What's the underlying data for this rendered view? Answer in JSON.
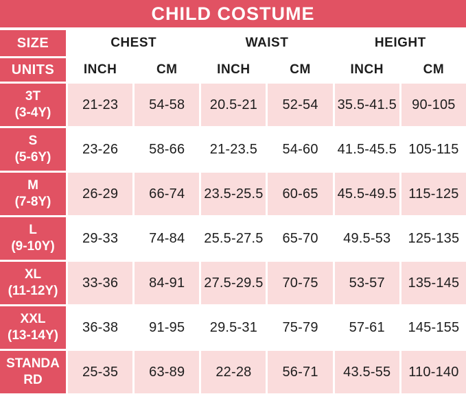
{
  "title": "CHILD COSTUME",
  "colors": {
    "accent": "#E15263",
    "row_pink": "#FADCDC",
    "text": "#1D1D1D",
    "background": "#FFFFFF"
  },
  "header": {
    "size_label": "SIZE",
    "units_label": "UNITS",
    "groups": [
      "CHEST",
      "WAIST",
      "HEIGHT"
    ],
    "units": [
      "INCH",
      "CM",
      "INCH",
      "CM",
      "INCH",
      "CM"
    ]
  },
  "chart_data": {
    "type": "table",
    "title": "CHILD COSTUME",
    "columns": [
      "SIZE",
      "CHEST INCH",
      "CHEST CM",
      "WAIST INCH",
      "WAIST CM",
      "HEIGHT INCH",
      "HEIGHT CM"
    ],
    "rows": [
      {
        "size_lines": [
          "3T",
          "(3-4Y)"
        ],
        "values": [
          "21-23",
          "54-58",
          "20.5-21",
          "52-54",
          "35.5-41.5",
          "90-105"
        ]
      },
      {
        "size_lines": [
          "S",
          "(5-6Y)"
        ],
        "values": [
          "23-26",
          "58-66",
          "21-23.5",
          "54-60",
          "41.5-45.5",
          "105-115"
        ]
      },
      {
        "size_lines": [
          "M",
          "(7-8Y)"
        ],
        "values": [
          "26-29",
          "66-74",
          "23.5-25.5",
          "60-65",
          "45.5-49.5",
          "115-125"
        ]
      },
      {
        "size_lines": [
          "L",
          "(9-10Y)"
        ],
        "values": [
          "29-33",
          "74-84",
          "25.5-27.5",
          "65-70",
          "49.5-53",
          "125-135"
        ]
      },
      {
        "size_lines": [
          "XL",
          "(11-12Y)"
        ],
        "values": [
          "33-36",
          "84-91",
          "27.5-29.5",
          "70-75",
          "53-57",
          "135-145"
        ]
      },
      {
        "size_lines": [
          "XXL",
          "(13-14Y)"
        ],
        "values": [
          "36-38",
          "91-95",
          "29.5-31",
          "75-79",
          "57-61",
          "145-155"
        ]
      },
      {
        "size_lines": [
          "STANDA",
          "RD"
        ],
        "values": [
          "25-35",
          "63-89",
          "22-28",
          "56-71",
          "43.5-55",
          "110-140"
        ]
      }
    ]
  }
}
